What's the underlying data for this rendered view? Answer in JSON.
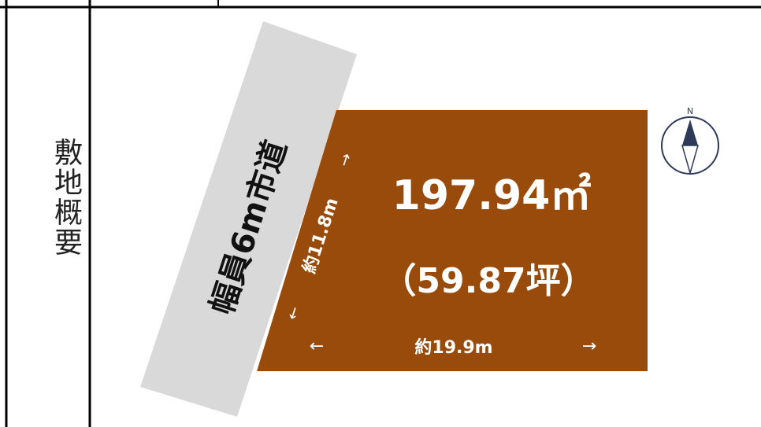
{
  "section_label": "敷地概要",
  "road": {
    "label": "幅員6m市道"
  },
  "lot": {
    "area_sqm": "197.94㎡",
    "area_tsubo": "（59.87坪）",
    "depth_label": "約11.8m",
    "width_label": "約19.9m",
    "arrow_left": "←",
    "arrow_right": "→",
    "arrow_up": "↑",
    "arrow_down": "↓"
  },
  "compass": {
    "label": "N",
    "icon": "north-arrow-compass"
  },
  "colors": {
    "lot_fill": "#994b0b",
    "road_fill": "#d9d9d9",
    "compass_stroke": "#2e3a57",
    "border": "#000000"
  }
}
